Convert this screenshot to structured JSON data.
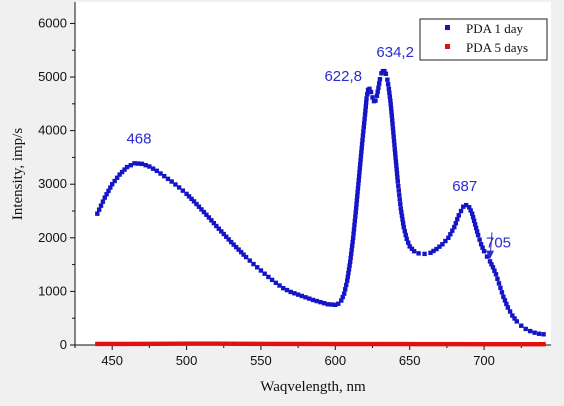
{
  "chart_data": {
    "type": "scatter",
    "title": "",
    "xlabel": "Waqvelength, nm",
    "ylabel": "Intensity, imp/s",
    "xlim": [
      425,
      745
    ],
    "ylim": [
      0,
      6400
    ],
    "xticks": [
      450,
      500,
      550,
      600,
      650,
      700
    ],
    "yticks": [
      0,
      1000,
      2000,
      3000,
      4000,
      5000,
      6000
    ],
    "grid": false,
    "legend_position": "top-right",
    "series": [
      {
        "name": "PDA 1 day",
        "color": "#1515c8",
        "points": [
          [
            440,
            2450
          ],
          [
            445,
            2750
          ],
          [
            450,
            3000
          ],
          [
            455,
            3180
          ],
          [
            460,
            3320
          ],
          [
            465,
            3390
          ],
          [
            470,
            3380
          ],
          [
            475,
            3330
          ],
          [
            480,
            3250
          ],
          [
            485,
            3150
          ],
          [
            490,
            3050
          ],
          [
            495,
            2940
          ],
          [
            500,
            2820
          ],
          [
            505,
            2680
          ],
          [
            510,
            2530
          ],
          [
            515,
            2380
          ],
          [
            520,
            2220
          ],
          [
            525,
            2070
          ],
          [
            530,
            1920
          ],
          [
            535,
            1780
          ],
          [
            540,
            1640
          ],
          [
            545,
            1510
          ],
          [
            550,
            1390
          ],
          [
            555,
            1270
          ],
          [
            560,
            1160
          ],
          [
            565,
            1060
          ],
          [
            570,
            990
          ],
          [
            575,
            940
          ],
          [
            580,
            890
          ],
          [
            585,
            840
          ],
          [
            590,
            800
          ],
          [
            595,
            760
          ],
          [
            600,
            750
          ],
          [
            602,
            770
          ],
          [
            604,
            830
          ],
          [
            606,
            960
          ],
          [
            608,
            1200
          ],
          [
            610,
            1550
          ],
          [
            612,
            2000
          ],
          [
            614,
            2550
          ],
          [
            616,
            3150
          ],
          [
            618,
            3750
          ],
          [
            620,
            4300
          ],
          [
            621,
            4600
          ],
          [
            622,
            4760
          ],
          [
            623,
            4780
          ],
          [
            624,
            4720
          ],
          [
            625,
            4620
          ],
          [
            626,
            4550
          ],
          [
            627,
            4560
          ],
          [
            628,
            4650
          ],
          [
            629,
            4800
          ],
          [
            630,
            4960
          ],
          [
            631,
            5070
          ],
          [
            632,
            5110
          ],
          [
            633,
            5110
          ],
          [
            634,
            5060
          ],
          [
            635,
            4950
          ],
          [
            636,
            4780
          ],
          [
            637,
            4560
          ],
          [
            638,
            4280
          ],
          [
            640,
            3650
          ],
          [
            642,
            3050
          ],
          [
            644,
            2550
          ],
          [
            646,
            2200
          ],
          [
            648,
            1980
          ],
          [
            650,
            1840
          ],
          [
            653,
            1750
          ],
          [
            656,
            1710
          ],
          [
            660,
            1700
          ],
          [
            664,
            1720
          ],
          [
            668,
            1790
          ],
          [
            672,
            1880
          ],
          [
            676,
            2000
          ],
          [
            680,
            2200
          ],
          [
            683,
            2420
          ],
          [
            686,
            2580
          ],
          [
            688,
            2610
          ],
          [
            690,
            2570
          ],
          [
            692,
            2450
          ],
          [
            694,
            2250
          ],
          [
            696,
            2050
          ],
          [
            698,
            1880
          ],
          [
            700,
            1750
          ],
          [
            702,
            1650
          ],
          [
            704,
            1560
          ],
          [
            706,
            1450
          ],
          [
            708,
            1320
          ],
          [
            710,
            1150
          ],
          [
            713,
            900
          ],
          [
            716,
            700
          ],
          [
            719,
            550
          ],
          [
            722,
            440
          ],
          [
            725,
            360
          ],
          [
            728,
            300
          ],
          [
            731,
            260
          ],
          [
            734,
            230
          ],
          [
            737,
            210
          ],
          [
            740,
            200
          ]
        ]
      },
      {
        "name": "PDA 5 days",
        "color": "#e01010",
        "points": [
          [
            440,
            20
          ],
          [
            460,
            20
          ],
          [
            480,
            22
          ],
          [
            500,
            25
          ],
          [
            520,
            25
          ],
          [
            540,
            22
          ],
          [
            560,
            20
          ],
          [
            580,
            20
          ],
          [
            600,
            18
          ],
          [
            620,
            18
          ],
          [
            640,
            18
          ],
          [
            660,
            16
          ],
          [
            680,
            16
          ],
          [
            700,
            15
          ],
          [
            720,
            15
          ],
          [
            740,
            15
          ]
        ]
      }
    ],
    "annotations": [
      {
        "text": "468",
        "x": 468,
        "y": 3390
      },
      {
        "text": "622,8",
        "x": 622.8,
        "y": 4780
      },
      {
        "text": "634,2",
        "x": 634.2,
        "y": 5110
      },
      {
        "text": "687",
        "x": 687,
        "y": 2610
      },
      {
        "text": "705",
        "x": 705,
        "y": 1500
      }
    ]
  }
}
